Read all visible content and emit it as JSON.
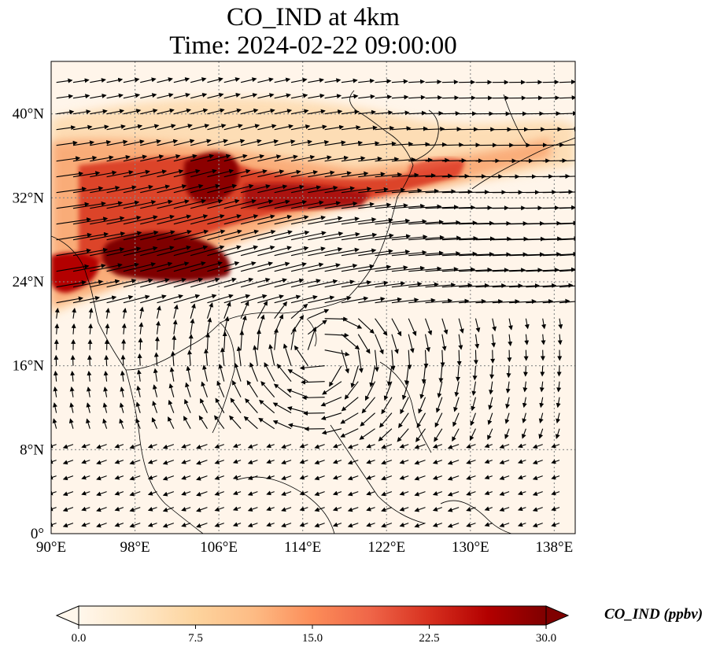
{
  "title": {
    "line1": "CO_IND at 4km",
    "line2": "Time: 2024-02-22 09:00:00"
  },
  "map": {
    "projection": "PlateCarree",
    "lon_range": [
      90,
      140
    ],
    "lat_range": [
      0,
      45
    ],
    "gridlines": "dotted",
    "lat_ticks": [
      {
        "value": 40,
        "label": "40°N"
      },
      {
        "value": 32,
        "label": "32°N"
      },
      {
        "value": 24,
        "label": "24°N"
      },
      {
        "value": 16,
        "label": "16°N"
      },
      {
        "value": 8,
        "label": "8°N"
      },
      {
        "value": 0,
        "label": "0°"
      }
    ],
    "lon_ticks": [
      {
        "value": 90,
        "label": "90°E"
      },
      {
        "value": 98,
        "label": "98°E"
      },
      {
        "value": 106,
        "label": "106°E"
      },
      {
        "value": 114,
        "label": "114°E"
      },
      {
        "value": 122,
        "label": "122°E"
      },
      {
        "value": 130,
        "label": "130°E"
      },
      {
        "value": 138,
        "label": "138°E"
      }
    ],
    "field": "CO_IND",
    "high_concentration_band": "westerly plume from northern Indochina across southern China to Korea and Japan",
    "wind_vectors": "quiver, strong westerlies north of 20°N, anticyclonic circulation over South China Sea"
  },
  "colorbar": {
    "label": "CO_IND (ppbv)",
    "min": 0.0,
    "max": 30.0,
    "extend": "both",
    "colormap": "OrRd",
    "ticks": [
      "0.0",
      "7.5",
      "15.0",
      "22.5",
      "30.0"
    ],
    "colors": [
      "#fff7ec",
      "#fee8c8",
      "#fdd49e",
      "#fdbb84",
      "#fc8d59",
      "#ef6548",
      "#d7301f",
      "#b30000",
      "#7f0000"
    ]
  }
}
